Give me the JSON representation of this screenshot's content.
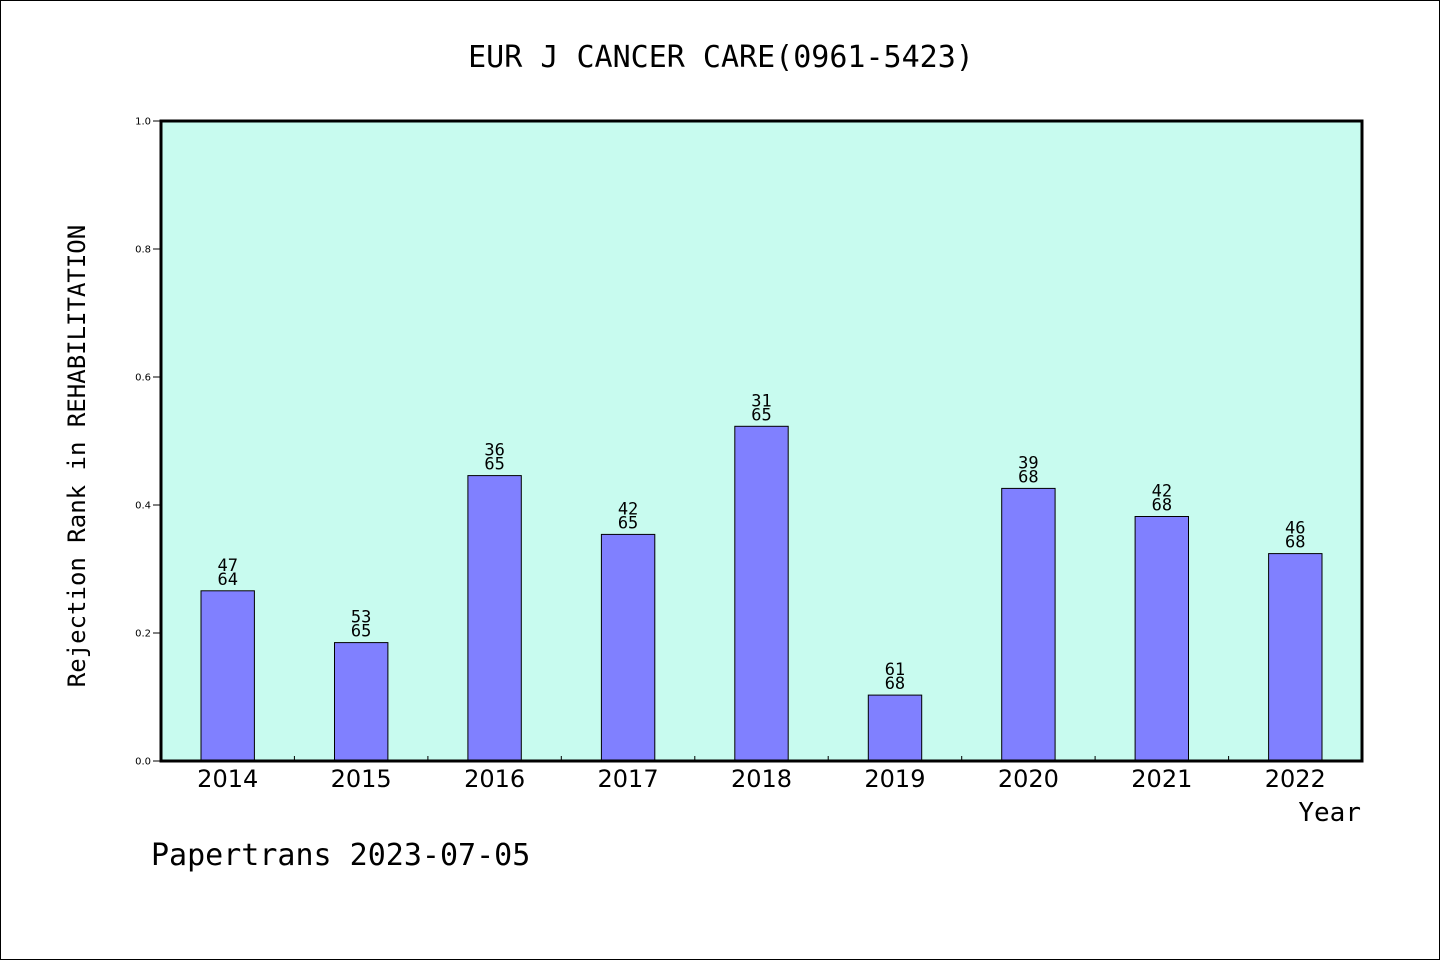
{
  "chart_data": {
    "type": "bar",
    "title": "EUR J CANCER CARE(0961-5423)",
    "xlabel": "Year",
    "ylabel": "Rejection Rank in REHABILITATION",
    "ylim": [
      0,
      1.0
    ],
    "yticks": [
      "0.0",
      "0.2",
      "0.4",
      "0.6",
      "0.8",
      "1.0"
    ],
    "categories": [
      "2014",
      "2015",
      "2016",
      "2017",
      "2018",
      "2019",
      "2020",
      "2021",
      "2022"
    ],
    "values": [
      0.266,
      0.185,
      0.446,
      0.354,
      0.523,
      0.103,
      0.426,
      0.382,
      0.324
    ],
    "labels_top": [
      "47",
      "53",
      "36",
      "42",
      "31",
      "61",
      "39",
      "42",
      "46"
    ],
    "labels_bottom": [
      "64",
      "65",
      "65",
      "65",
      "65",
      "68",
      "68",
      "68",
      "68"
    ],
    "grid": false,
    "colors": {
      "plot_background": "#c8fbef",
      "bar": "#8080ff"
    }
  },
  "footer": "Papertrans 2023-07-05"
}
